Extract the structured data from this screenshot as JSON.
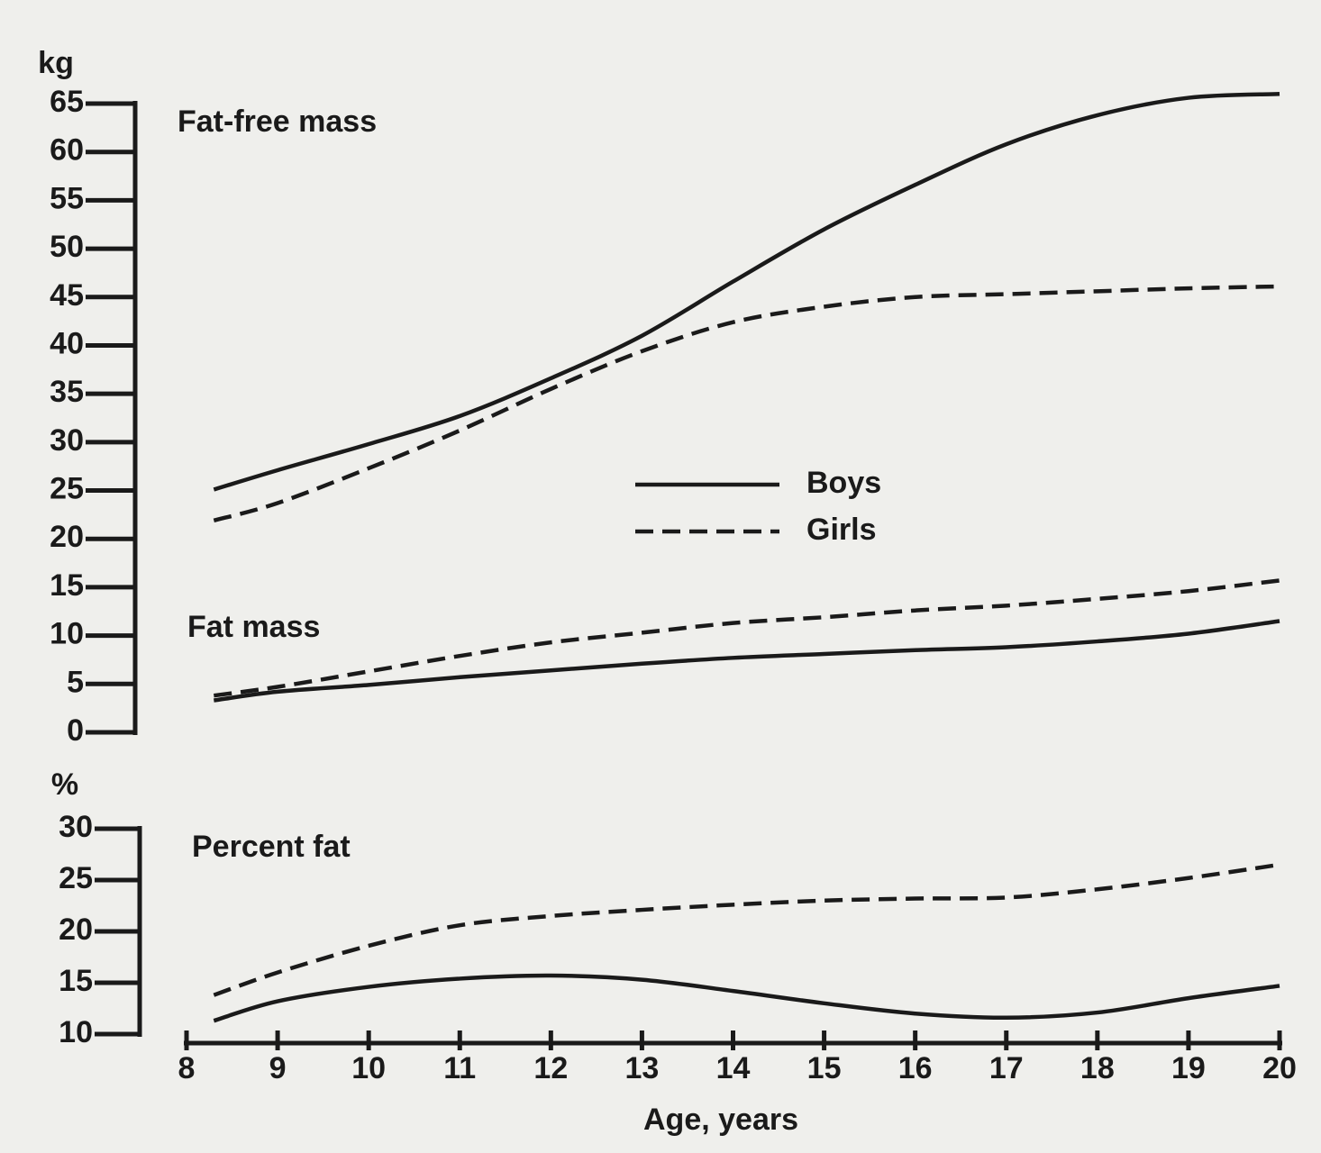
{
  "chart_data": [
    {
      "type": "line",
      "ylabel": "kg",
      "ylim": [
        0,
        65
      ],
      "yticks": [
        0,
        5,
        10,
        15,
        20,
        25,
        30,
        35,
        40,
        45,
        50,
        55,
        60,
        65
      ],
      "x": [
        8.3,
        9,
        10,
        11,
        12,
        13,
        14,
        15,
        16,
        17,
        18,
        19,
        20
      ],
      "groups": [
        {
          "label": "Fat-free mass",
          "series": [
            {
              "name": "Boys",
              "color": "#1a1a1a",
              "line_style": "solid",
              "values": [
                25.1,
                27.1,
                29.8,
                32.7,
                36.6,
                41,
                46.6,
                52,
                56.6,
                60.8,
                63.8,
                65.6,
                66
              ]
            },
            {
              "name": "Girls",
              "color": "#1a1a1a",
              "line_style": "dashed",
              "values": [
                21.9,
                23.7,
                27.3,
                31.2,
                35.5,
                39.4,
                42.4,
                44,
                45,
                45.3,
                45.6,
                45.9,
                46.1
              ]
            }
          ]
        },
        {
          "label": "Fat mass",
          "series": [
            {
              "color": "#1a1a1a",
              "line_style": "solid",
              "values": [
                3.3,
                4.2,
                4.9,
                5.7,
                6.4,
                7.1,
                7.7,
                8.1,
                8.5,
                8.8,
                9.4,
                10.2,
                11.5
              ]
            },
            {
              "color": "#1a1a1a",
              "line_style": "dashed",
              "values": [
                3.8,
                4.7,
                6.3,
                7.9,
                9.3,
                10.3,
                11.3,
                11.9,
                12.6,
                13.1,
                13.8,
                14.6,
                15.7
              ]
            }
          ]
        }
      ]
    },
    {
      "type": "line",
      "ylabel": "%",
      "ylim": [
        10,
        30
      ],
      "yticks": [
        10,
        15,
        20,
        25,
        30
      ],
      "xlabel": "Age, years",
      "xlim": [
        8,
        20
      ],
      "xticks": [
        8,
        9,
        10,
        11,
        12,
        13,
        14,
        15,
        16,
        17,
        18,
        19,
        20
      ],
      "x": [
        8.3,
        9,
        10,
        11,
        12,
        13,
        14,
        15,
        16,
        17,
        18,
        19,
        20
      ],
      "groups": [
        {
          "label": "Percent fat",
          "series": [
            {
              "color": "#1a1a1a",
              "line_style": "solid",
              "values": [
                11.3,
                13.2,
                14.6,
                15.4,
                15.7,
                15.3,
                14.2,
                13,
                12,
                11.6,
                12.1,
                13.5,
                14.7
              ]
            },
            {
              "color": "#1a1a1a",
              "line_style": "dashed",
              "values": [
                13.8,
                16,
                18.6,
                20.6,
                21.5,
                22.1,
                22.6,
                23,
                23.2,
                23.3,
                24.1,
                25.2,
                26.5
              ]
            }
          ]
        }
      ]
    }
  ]
}
